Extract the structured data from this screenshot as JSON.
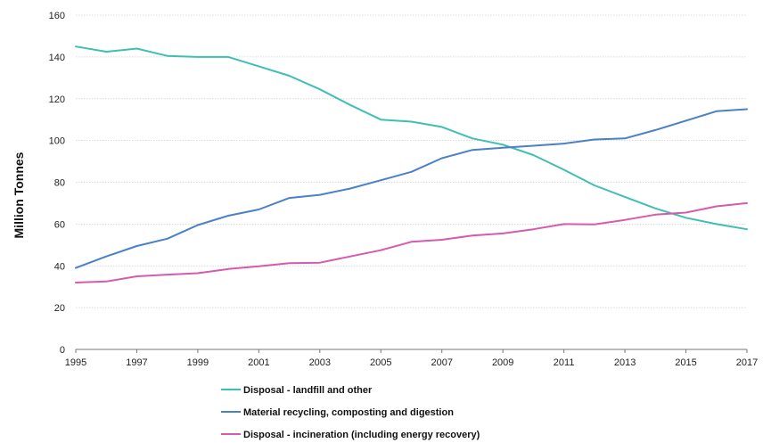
{
  "chart_data": {
    "type": "line",
    "title": "",
    "xlabel": "",
    "ylabel": "Million Tonnes",
    "ylim": [
      0,
      160
    ],
    "yticks": [
      "0",
      "20",
      "40",
      "60",
      "80",
      "100",
      "120",
      "140",
      "160"
    ],
    "xlim": [
      1995,
      2017
    ],
    "xticks": [
      "1995",
      "1997",
      "1999",
      "2001",
      "2003",
      "2005",
      "2007",
      "2009",
      "2011",
      "2013",
      "2015",
      "2017"
    ],
    "grid": true,
    "legend_position": "bottom",
    "x": [
      1995,
      1996,
      1997,
      1998,
      1999,
      2000,
      2001,
      2002,
      2003,
      2004,
      2005,
      2006,
      2007,
      2008,
      2009,
      2010,
      2011,
      2012,
      2013,
      2014,
      2015,
      2016,
      2017
    ],
    "series": [
      {
        "name": "Disposal - landfill and other",
        "color": "#3fbfb4",
        "values": [
          145,
          142.5,
          144,
          140.5,
          140,
          140,
          135.5,
          131,
          124.5,
          117,
          110,
          109,
          106.5,
          101,
          98,
          93,
          86,
          78.5,
          73,
          67.5,
          63,
          60,
          57.5
        ]
      },
      {
        "name": "Material recycling, composting and digestion",
        "color": "#4a80c8",
        "values": [
          39,
          44.5,
          49.5,
          53,
          59.5,
          64,
          67,
          72.5,
          74,
          77,
          81,
          85,
          91.5,
          95.5,
          96.5,
          97.5,
          98.5,
          100.5,
          101,
          105,
          109.5,
          114,
          115
        ]
      },
      {
        "name": "Disposal - incineration (including energy recovery)",
        "color": "#d65aae",
        "values": [
          32,
          32.5,
          35,
          35.8,
          36.5,
          38.5,
          39.8,
          41.3,
          41.5,
          44.5,
          47.5,
          51.5,
          52.5,
          54.5,
          55.5,
          57.5,
          60,
          59.8,
          62,
          64.5,
          65.5,
          68.5,
          70
        ]
      }
    ]
  }
}
